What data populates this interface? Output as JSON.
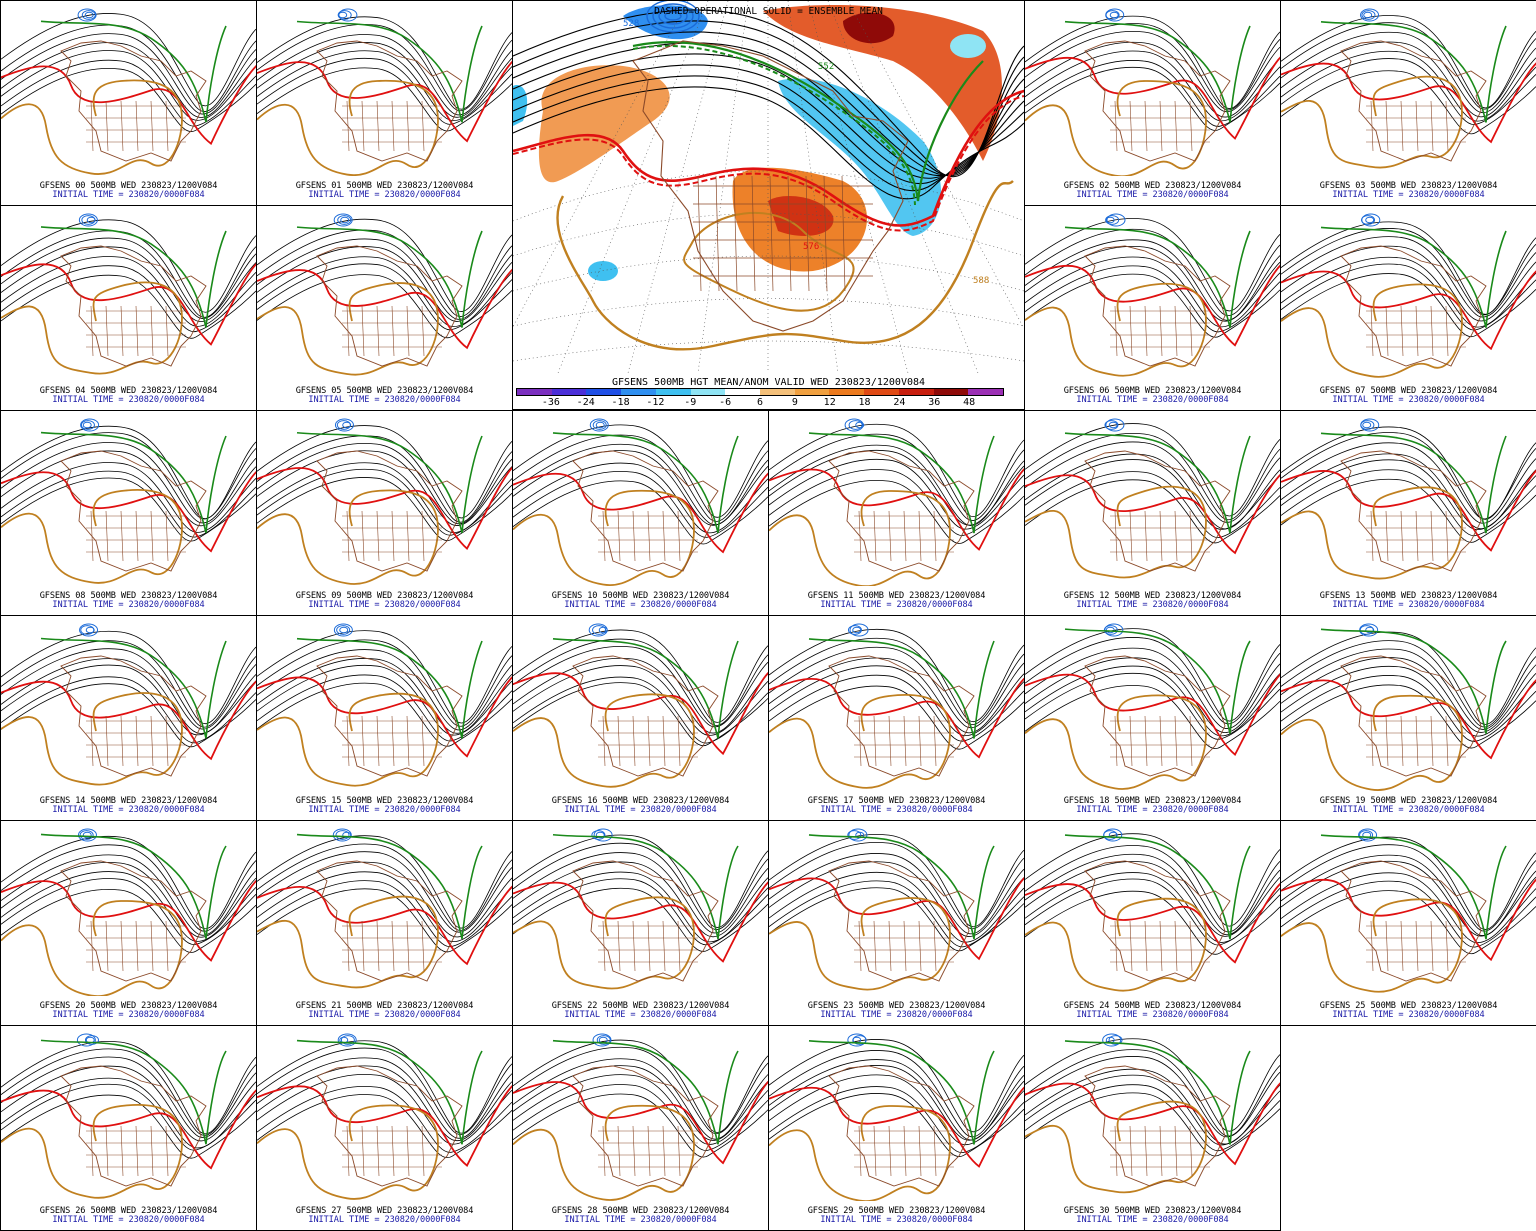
{
  "main": {
    "header": "DASHED=OPERATIONAL  SOLID = ENSEMBLE MEAN",
    "caption": "GFSENS 500MB HGT MEAN/ANOM VALID WED 230823/1200V084",
    "colorbar": {
      "labels": [
        "-36",
        "-24",
        "-18",
        "-12",
        "-9",
        "-6",
        "6",
        "9",
        "12",
        "18",
        "24",
        "36",
        "48"
      ],
      "colors": [
        "#7b2fbf",
        "#4b2fd8",
        "#1f4fe6",
        "#2f8ff0",
        "#3fc0f0",
        "#8fe4f4",
        "#ffffff",
        "#f4c07a",
        "#f0a040",
        "#ec7a1e",
        "#e04a14",
        "#c81e0e",
        "#8f0a08",
        "#9b2fb4"
      ]
    },
    "contour_labels": [
      "576",
      "588",
      "552",
      "528"
    ]
  },
  "members": [
    {
      "id": "00",
      "title": "GFSENS 00 500MB WED 230823/1200V084",
      "init": "INITIAL TIME = 230820/0000F084"
    },
    {
      "id": "01",
      "title": "GFSENS 01 500MB WED 230823/1200V084",
      "init": "INITIAL TIME = 230820/0000F084"
    },
    {
      "id": "02",
      "title": "GFSENS 02 500MB WED 230823/1200V084",
      "init": "INITIAL TIME = 230820/0000F084"
    },
    {
      "id": "03",
      "title": "GFSENS 03 500MB WED 230823/1200V084",
      "init": "INITIAL TIME = 230820/0000F084"
    },
    {
      "id": "04",
      "title": "GFSENS 04 500MB WED 230823/1200V084",
      "init": "INITIAL TIME = 230820/0000F084"
    },
    {
      "id": "05",
      "title": "GFSENS 05 500MB WED 230823/1200V084",
      "init": "INITIAL TIME = 230820/0000F084"
    },
    {
      "id": "06",
      "title": "GFSENS 06 500MB WED 230823/1200V084",
      "init": "INITIAL TIME = 230820/0000F084"
    },
    {
      "id": "07",
      "title": "GFSENS 07 500MB WED 230823/1200V084",
      "init": "INITIAL TIME = 230820/0000F084"
    },
    {
      "id": "08",
      "title": "GFSENS 08 500MB WED 230823/1200V084",
      "init": "INITIAL TIME = 230820/0000F084"
    },
    {
      "id": "09",
      "title": "GFSENS 09 500MB WED 230823/1200V084",
      "init": "INITIAL TIME = 230820/0000F084"
    },
    {
      "id": "10",
      "title": "GFSENS 10 500MB WED 230823/1200V084",
      "init": "INITIAL TIME = 230820/0000F084"
    },
    {
      "id": "11",
      "title": "GFSENS 11 500MB WED 230823/1200V084",
      "init": "INITIAL TIME = 230820/0000F084"
    },
    {
      "id": "12",
      "title": "GFSENS 12 500MB WED 230823/1200V084",
      "init": "INITIAL TIME = 230820/0000F084"
    },
    {
      "id": "13",
      "title": "GFSENS 13 500MB WED 230823/1200V084",
      "init": "INITIAL TIME = 230820/0000F084"
    },
    {
      "id": "14",
      "title": "GFSENS 14 500MB WED 230823/1200V084",
      "init": "INITIAL TIME = 230820/0000F084"
    },
    {
      "id": "15",
      "title": "GFSENS 15 500MB WED 230823/1200V084",
      "init": "INITIAL TIME = 230820/0000F084"
    },
    {
      "id": "16",
      "title": "GFSENS 16 500MB WED 230823/1200V084",
      "init": "INITIAL TIME = 230820/0000F084"
    },
    {
      "id": "17",
      "title": "GFSENS 17 500MB WED 230823/1200V084",
      "init": "INITIAL TIME = 230820/0000F084"
    },
    {
      "id": "18",
      "title": "GFSENS 18 500MB WED 230823/1200V084",
      "init": "INITIAL TIME = 230820/0000F084"
    },
    {
      "id": "19",
      "title": "GFSENS 19 500MB WED 230823/1200V084",
      "init": "INITIAL TIME = 230820/0000F084"
    },
    {
      "id": "20",
      "title": "GFSENS 20 500MB WED 230823/1200V084",
      "init": "INITIAL TIME = 230820/0000F084"
    },
    {
      "id": "21",
      "title": "GFSENS 21 500MB WED 230823/1200V084",
      "init": "INITIAL TIME = 230820/0000F084"
    },
    {
      "id": "22",
      "title": "GFSENS 22 500MB WED 230823/1200V084",
      "init": "INITIAL TIME = 230820/0000F084"
    },
    {
      "id": "23",
      "title": "GFSENS 23 500MB WED 230823/1200V084",
      "init": "INITIAL TIME = 230820/0000F084"
    },
    {
      "id": "24",
      "title": "GFSENS 24 500MB WED 230823/1200V084",
      "init": "INITIAL TIME = 230820/0000F084"
    },
    {
      "id": "25",
      "title": "GFSENS 25 500MB WED 230823/1200V084",
      "init": "INITIAL TIME = 230820/0000F084"
    },
    {
      "id": "26",
      "title": "GFSENS 26 500MB WED 230823/1200V084",
      "init": "INITIAL TIME = 230820/0000F084"
    },
    {
      "id": "27",
      "title": "GFSENS 27 500MB WED 230823/1200V084",
      "init": "INITIAL TIME = 230820/0000F084"
    },
    {
      "id": "28",
      "title": "GFSENS 28 500MB WED 230823/1200V084",
      "init": "INITIAL TIME = 230820/0000F084"
    },
    {
      "id": "29",
      "title": "GFSENS 29 500MB WED 230823/1200V084",
      "init": "INITIAL TIME = 230820/0000F084"
    },
    {
      "id": "30",
      "title": "GFSENS 30 500MB WED 230823/1200V084",
      "init": "INITIAL TIME = 230820/0000F084"
    }
  ],
  "contour_colors": {
    "c576": "#e01010",
    "c588": "#c08020",
    "c552": "#1a8a1a",
    "low": "#1a6ad8",
    "coast": "#8b4a2a"
  }
}
